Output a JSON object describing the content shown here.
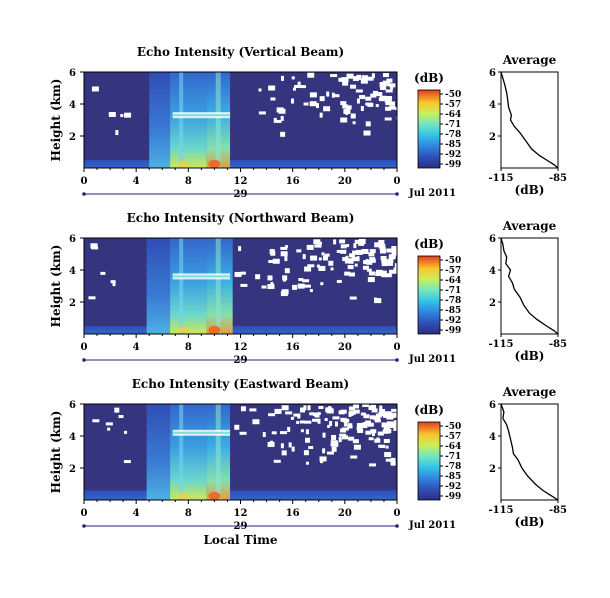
{
  "chart_data": [
    {
      "type": "heatmap",
      "title": "Echo Intensity (Vertical Beam)",
      "ylabel": "Height (km)",
      "ylim": [
        0,
        6
      ],
      "yticks": [
        "6",
        "4",
        "2"
      ],
      "xlim": [
        0,
        24
      ],
      "xticks": [
        "0",
        "4",
        "8",
        "12",
        "16",
        "20",
        "0"
      ],
      "date_tick": "29",
      "date_label": "Jul 2011",
      "colorbar": {
        "title": "(dB)",
        "ticks": [
          "-50",
          "-57",
          "-64",
          "-71",
          "-78",
          "-85",
          "-92",
          "-99"
        ],
        "range": [
          -99,
          -50
        ]
      },
      "layers": [
        {
          "time_range": [
            5,
            6.6
          ],
          "top": 6,
          "intensity": "-85 to -78"
        },
        {
          "time_range": [
            6.6,
            9.4
          ],
          "top": 6,
          "intensity": "-78 to -64"
        },
        {
          "time_range": [
            9.4,
            11.2
          ],
          "top": 6,
          "intensity": "-78 to -64"
        },
        {
          "time_range": [
            0,
            24
          ],
          "top": 0.5,
          "intensity": "-85"
        },
        {
          "time_range": [
            6.8,
            11.2
          ],
          "height": 3.3,
          "intensity": "-64 to -57"
        }
      ],
      "average_profile": {
        "title": "Average",
        "xlabel": "(dB)",
        "xlim": [
          -115,
          -85
        ],
        "xticks": [
          "-115",
          "-85"
        ],
        "ylim": [
          0,
          6
        ],
        "yticks": [
          "6",
          "4",
          "2"
        ],
        "points": [
          [
            -115,
            6
          ],
          [
            -114,
            5.6
          ],
          [
            -113,
            5.2
          ],
          [
            -112,
            4.7
          ],
          [
            -111.5,
            4.3
          ],
          [
            -111,
            3.8
          ],
          [
            -109.5,
            3.3
          ],
          [
            -110,
            3.0
          ],
          [
            -108,
            2.6
          ],
          [
            -105,
            2.2
          ],
          [
            -102,
            1.7
          ],
          [
            -99,
            1.2
          ],
          [
            -95,
            0.8
          ],
          [
            -91,
            0.5
          ],
          [
            -87,
            0.2
          ],
          [
            -85,
            0
          ]
        ]
      }
    },
    {
      "type": "heatmap",
      "title": "Echo Intensity (Northward Beam)",
      "ylabel": "Height (km)",
      "ylim": [
        0,
        6
      ],
      "yticks": [
        "6",
        "4",
        "2"
      ],
      "xlim": [
        0,
        24
      ],
      "xticks": [
        "0",
        "4",
        "8",
        "12",
        "16",
        "20",
        "0"
      ],
      "date_tick": "29",
      "date_label": "Jul 2011",
      "colorbar": {
        "title": "(dB)",
        "ticks": [
          "-50",
          "-57",
          "-64",
          "-71",
          "-78",
          "-85",
          "-92",
          "-99"
        ],
        "range": [
          -99,
          -50
        ]
      },
      "layers": [
        {
          "time_range": [
            4.8,
            6.6
          ],
          "top": 6,
          "intensity": "-85 to -78"
        },
        {
          "time_range": [
            6.6,
            9.4
          ],
          "top": 6,
          "intensity": "-78 to -64"
        },
        {
          "time_range": [
            9.4,
            11.4
          ],
          "top": 6,
          "intensity": "-78 to -64"
        },
        {
          "time_range": [
            0,
            24
          ],
          "top": 0.5,
          "intensity": "-85"
        },
        {
          "time_range": [
            6.8,
            11.2
          ],
          "height": 3.6,
          "intensity": "-64 to -57"
        }
      ],
      "average_profile": {
        "title": "Average",
        "xlabel": "(dB)",
        "xlim": [
          -115,
          -85
        ],
        "xticks": [
          "-115",
          "-85"
        ],
        "ylim": [
          0,
          6
        ],
        "yticks": [
          "6",
          "4",
          "2"
        ],
        "points": [
          [
            -115,
            6
          ],
          [
            -114,
            5.6
          ],
          [
            -113.5,
            5.2
          ],
          [
            -112,
            4.8
          ],
          [
            -112.5,
            4.4
          ],
          [
            -110,
            4.0
          ],
          [
            -111,
            3.6
          ],
          [
            -109,
            3.2
          ],
          [
            -108,
            2.8
          ],
          [
            -105,
            2.3
          ],
          [
            -103,
            1.8
          ],
          [
            -100,
            1.3
          ],
          [
            -96,
            0.9
          ],
          [
            -91,
            0.5
          ],
          [
            -87,
            0.2
          ],
          [
            -85,
            0
          ]
        ]
      }
    },
    {
      "type": "heatmap",
      "title": "Echo Intensity (Eastward Beam)",
      "ylabel": "Height (km)",
      "ylim": [
        0,
        6
      ],
      "yticks": [
        "6",
        "4",
        "2"
      ],
      "xlim": [
        0,
        24
      ],
      "xticks": [
        "0",
        "4",
        "8",
        "12",
        "16",
        "20",
        "0"
      ],
      "date_tick": "29",
      "date_label": "Jul 2011",
      "xlabel": "Local Time",
      "colorbar": {
        "title": "(dB)",
        "ticks": [
          "-50",
          "-57",
          "-64",
          "-71",
          "-78",
          "-85",
          "-92",
          "-99"
        ],
        "range": [
          -99,
          -50
        ]
      },
      "layers": [
        {
          "time_range": [
            4.8,
            6.6
          ],
          "top": 6,
          "intensity": "-85 to -78"
        },
        {
          "time_range": [
            6.6,
            9.4
          ],
          "top": 6,
          "intensity": "-78 to -64"
        },
        {
          "time_range": [
            9.4,
            11.2
          ],
          "top": 6,
          "intensity": "-78 to -64"
        },
        {
          "time_range": [
            0,
            24
          ],
          "top": 0.6,
          "intensity": "-85"
        },
        {
          "time_range": [
            6.8,
            11.2
          ],
          "height": 4.2,
          "intensity": "-64 to -57"
        }
      ],
      "average_profile": {
        "title": "Average",
        "xlabel": "(dB)",
        "xlim": [
          -115,
          -85
        ],
        "xticks": [
          "-115",
          "-85"
        ],
        "ylim": [
          0,
          6
        ],
        "yticks": [
          "6",
          "4",
          "2"
        ],
        "points": [
          [
            -115,
            6
          ],
          [
            -113.5,
            5.5
          ],
          [
            -114,
            5.1
          ],
          [
            -112,
            4.7
          ],
          [
            -111,
            4.3
          ],
          [
            -110,
            3.8
          ],
          [
            -109,
            3.3
          ],
          [
            -108.5,
            2.9
          ],
          [
            -106,
            2.5
          ],
          [
            -104,
            2.0
          ],
          [
            -101,
            1.5
          ],
          [
            -97,
            1.0
          ],
          [
            -93,
            0.6
          ],
          [
            -89,
            0.3
          ],
          [
            -85,
            0
          ]
        ]
      }
    }
  ]
}
